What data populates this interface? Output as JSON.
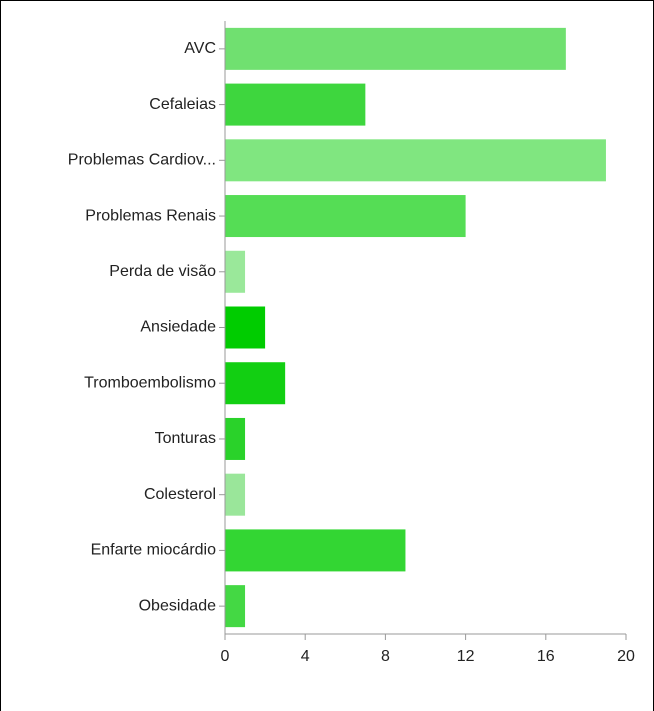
{
  "chart_data": {
    "type": "bar",
    "orientation": "horizontal",
    "categories": [
      "AVC",
      "Cefaleias",
      "Problemas Cardiov...",
      "Problemas Renais",
      "Perda de visão",
      "Ansiedade",
      "Tromboembolismo",
      "Tonturas",
      "Colesterol",
      "Enfarte miocárdio",
      "Obesidade"
    ],
    "values": [
      17,
      7,
      19,
      12,
      1,
      2,
      3,
      1,
      1,
      9,
      1
    ],
    "colors": [
      "#70e070",
      "#3ed63e",
      "#80e680",
      "#55dd55",
      "#9ae89a",
      "#00cc00",
      "#12cf12",
      "#2ad22a",
      "#9ae69a",
      "#33d633",
      "#44d844"
    ],
    "xlim": [
      0,
      20
    ],
    "xticks": [
      0,
      4,
      8,
      12,
      16,
      20
    ]
  }
}
